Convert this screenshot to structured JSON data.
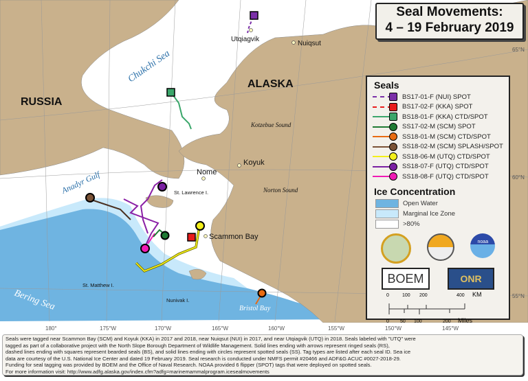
{
  "title": {
    "line1": "Seal Movements:",
    "line2": "4 – 19 February 2019"
  },
  "colors": {
    "open_water": "#6fb4e1",
    "marginal_ice": "#c8e9fb",
    "ice": "#ffffff",
    "land": "#c9b18c"
  },
  "map_labels": {
    "russia": "RUSSIA",
    "alaska": "ALASKA",
    "chukchi": "Chukchi Sea",
    "bering": "Bering Sea",
    "anadyr": "Anadyr Gulf",
    "kotzebue": "Kotzebue Sound",
    "norton": "Norton Sound",
    "bristol": "Bristol Bay",
    "st_lawrence": "St. Lawrence I.",
    "st_matthew": "St. Matthew I.",
    "nunivak": "Nunivak I.",
    "utqiagvik": "Utqiagvik",
    "nuiqsut": "Nuiqsut",
    "nome": "Nome",
    "koyuk": "Koyuk",
    "scammon": "Scammon Bay"
  },
  "latitudes": [
    "65°N",
    "60°N",
    "55°N"
  ],
  "longitudes": [
    "180°",
    "175°W",
    "170°W",
    "165°W",
    "160°W",
    "155°W",
    "150°W",
    "145°W"
  ],
  "legend": {
    "seals_title": "Seals",
    "seals": [
      {
        "label": "BS17-01-F (NUI) SPOT",
        "color": "#7b2fa8",
        "line": "dashed",
        "marker": "square"
      },
      {
        "label": "BS17-02-F (KKA) SPOT",
        "color": "#e81c1c",
        "line": "dashed",
        "marker": "square"
      },
      {
        "label": "BS18-01-F (KKA) CTD/SPOT",
        "color": "#3aa66a",
        "line": "solid-dash",
        "marker": "square"
      },
      {
        "label": "SS17-02-M (SCM) SPOT",
        "color": "#1f7a33",
        "line": "solid",
        "marker": "circle"
      },
      {
        "label": "SS18-01-M (SCM) CTD/SPOT",
        "color": "#e86b12",
        "line": "solid",
        "marker": "circle"
      },
      {
        "label": "SS18-02-M (SCM) SPLASH/SPOT",
        "color": "#7a5236",
        "line": "solid",
        "marker": "circle"
      },
      {
        "label": "SS18-06-M (UTQ) CTD/SPOT",
        "color": "#f3ef1a",
        "line": "solid",
        "marker": "circle"
      },
      {
        "label": "SS18-07-F (UTQ) CTD/SPOT",
        "color": "#7a1fa2",
        "line": "solid",
        "marker": "circle"
      },
      {
        "label": "SS18-08-F (UTQ) CTD/SPOT",
        "color": "#f01ab4",
        "line": "solid",
        "marker": "circle"
      }
    ],
    "ice_title": "Ice Concentration",
    "ice": [
      {
        "label": "Open Water",
        "color": "#6fb4e1"
      },
      {
        "label": "Marginal Ice Zone",
        "color": "#c8e9fb"
      },
      {
        "label": ">80%",
        "color": "#ffffff"
      }
    ],
    "logos": {
      "boem": "BOEM",
      "onr": "ONR",
      "noaa": "noaa"
    },
    "scale_km": {
      "ticks": [
        "0",
        "100",
        "200",
        "400"
      ],
      "unit": "KM"
    },
    "scale_mi": {
      "ticks": [
        "0",
        "50",
        "100",
        "200"
      ],
      "unit": "Miles"
    }
  },
  "caption": [
    "Seals were tagged near Scammon Bay (SCM) and Koyuk (KKA) in 2017 and 2018, near Nuiqsut (NUI) in 2017, and near Utqiagvik (UTQ) in 2018. Seals labeled with \"UTQ\" were",
    "tagged as part of a collaborative project with the North Slope Borough Department of Wildlife Management. Solid lines ending with arrows represent ringed seals (RS),",
    "dashed lines ending with squares represent bearded seals (BS), and solid lines ending with circles represent spotted seals (SS). Tag types are listed after each seal ID. Sea ice",
    "data are courtesy of the U.S. National Ice Center and dated 19 February 2019. Seal research is conducted under NMFS permit #20466 and ADF&G ACUC #0027-2018-29.",
    "Funding for seal tagging was provided by BOEM and the Office of Naval Research. NOAA provided 6 flipper (SPOT) tags that were deployed on spotted seals.",
    "For more information visit: http://www.adfg.alaska.gov/index.cfm?adfg=marinemammalprogram.icesealmovements"
  ]
}
